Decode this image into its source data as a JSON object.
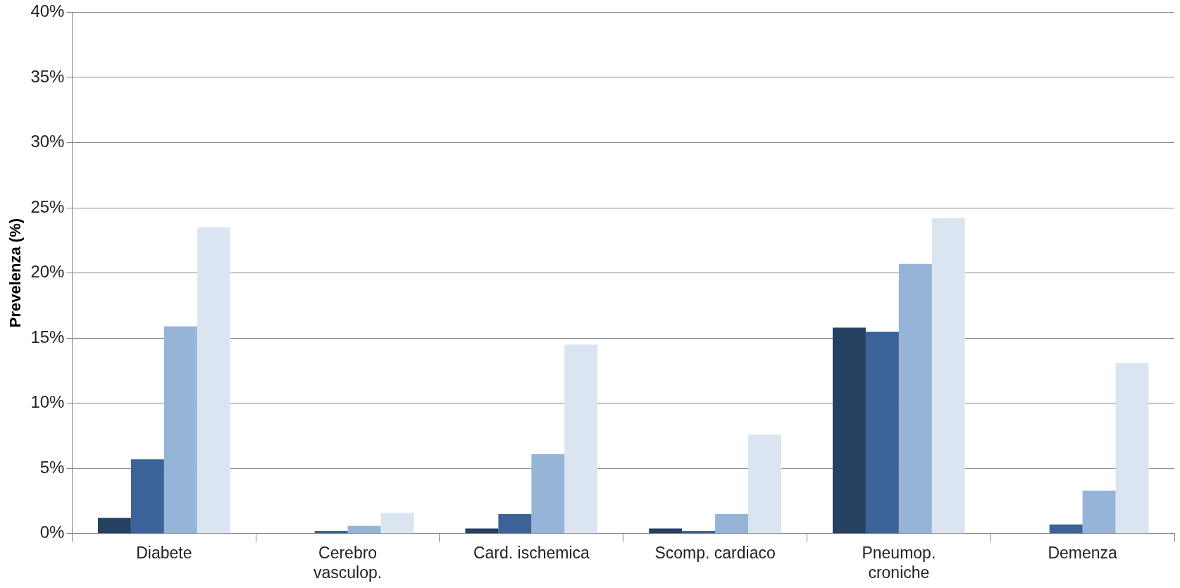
{
  "chart_data": {
    "type": "bar",
    "ylabel": "Prevelenza (%)",
    "categories": [
      "Diabete",
      "Cerebro\nvasculop.",
      "Card. ischemica",
      "Scomp. cardiaco",
      "Pneumop.\ncroniche",
      "Demenza"
    ],
    "series": [
      {
        "color": "#254061",
        "values": [
          1.2,
          0,
          0.4,
          0.4,
          15.8,
          0
        ]
      },
      {
        "color": "#3b6397",
        "values": [
          5.7,
          0.2,
          1.5,
          0.2,
          15.5,
          0.7
        ]
      },
      {
        "color": "#96b4d8",
        "values": [
          15.9,
          0.6,
          6.1,
          1.5,
          20.7,
          3.3
        ]
      },
      {
        "color": "#dbe5f1",
        "values": [
          23.5,
          1.6,
          14.5,
          7.6,
          24.2,
          13.1
        ]
      }
    ],
    "ylim": [
      0,
      40
    ],
    "yticks": [
      {
        "value": 0,
        "label": "0%"
      },
      {
        "value": 5,
        "label": "5%"
      },
      {
        "value": 10,
        "label": "10%"
      },
      {
        "value": 15,
        "label": "15%"
      },
      {
        "value": 20,
        "label": "20%"
      },
      {
        "value": 25,
        "label": "25%"
      },
      {
        "value": 30,
        "label": "30%"
      },
      {
        "value": 35,
        "label": "35%"
      },
      {
        "value": 40,
        "label": "40%"
      }
    ],
    "grid": "y",
    "legend": false
  }
}
